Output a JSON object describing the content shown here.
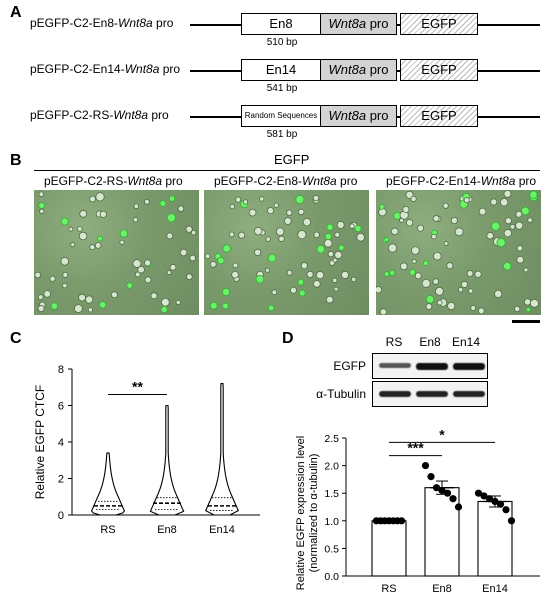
{
  "panels": {
    "A": "A",
    "B": "B",
    "C": "C",
    "D": "D"
  },
  "constructs": [
    {
      "label_prefix": "pEGFP-C2-En8-",
      "label_italic": "Wnt8a",
      "label_suffix": " pro",
      "element": "En8",
      "bp": "510 bp"
    },
    {
      "label_prefix": "pEGFP-C2-En14-",
      "label_italic": "Wnt8a",
      "label_suffix": " pro",
      "element": "En14",
      "bp": "541 bp"
    },
    {
      "label_prefix": "pEGFP-C2-RS-",
      "label_italic": "Wnt8a",
      "label_suffix": " pro",
      "element": "Random Sequences",
      "bp": "581 bp"
    }
  ],
  "promoter_italic": "Wnt8a",
  "promoter_suffix": " pro",
  "reporter": "EGFP",
  "panel_b": {
    "header": "EGFP",
    "images": [
      {
        "prefix": "pEGFP-C2-RS-",
        "italic": "Wnt8a",
        "suffix": " pro"
      },
      {
        "prefix": "pEGFP-C2-En8-",
        "italic": "Wnt8a",
        "suffix": " pro"
      },
      {
        "prefix": "pEGFP-C2-En14-",
        "italic": "Wnt8a",
        "suffix": " pro"
      }
    ]
  },
  "chart_data": [
    {
      "type": "violin",
      "ylabel": "Relative EGFP CTCF",
      "categories": [
        "RS",
        "En8",
        "En14"
      ],
      "ylim": [
        0,
        8
      ],
      "yticks": [
        0,
        2,
        4,
        6,
        8
      ],
      "max_values": [
        3.4,
        6.0,
        7.2
      ],
      "medians": [
        0.5,
        0.65,
        0.5
      ],
      "quartiles_upper": [
        0.75,
        0.95,
        0.95
      ],
      "quartiles_lower": [
        0.3,
        0.3,
        0.25
      ],
      "significance": [
        {
          "from": "RS",
          "to": "En8",
          "label": "**"
        }
      ]
    },
    {
      "type": "bar",
      "ylabel": "Relative EGFP expression level",
      "ylabel2": "(normalized to α-tubulin)",
      "categories": [
        "RS",
        "En8",
        "En14"
      ],
      "values": [
        1.0,
        1.6,
        1.35
      ],
      "sem": [
        0.0,
        0.12,
        0.1
      ],
      "points": [
        [
          1,
          1,
          1,
          1,
          1,
          1,
          1
        ],
        [
          2.0,
          1.8,
          1.6,
          1.55,
          1.5,
          1.4,
          1.25
        ],
        [
          1.5,
          1.45,
          1.4,
          1.35,
          1.3,
          1.2,
          1.0
        ]
      ],
      "ylim": [
        0,
        2.5
      ],
      "yticks": [
        "0.0",
        "0.5",
        "1.0",
        "1.5",
        "2.0",
        "2.5"
      ],
      "significance": [
        {
          "from": "RS",
          "to": "En8",
          "label": "***"
        },
        {
          "from": "RS",
          "to": "En14",
          "label": "*"
        }
      ]
    }
  ],
  "blot": {
    "lanes": [
      "RS",
      "En8",
      "En14"
    ],
    "rows": [
      "EGFP",
      "α-Tubulin"
    ]
  }
}
